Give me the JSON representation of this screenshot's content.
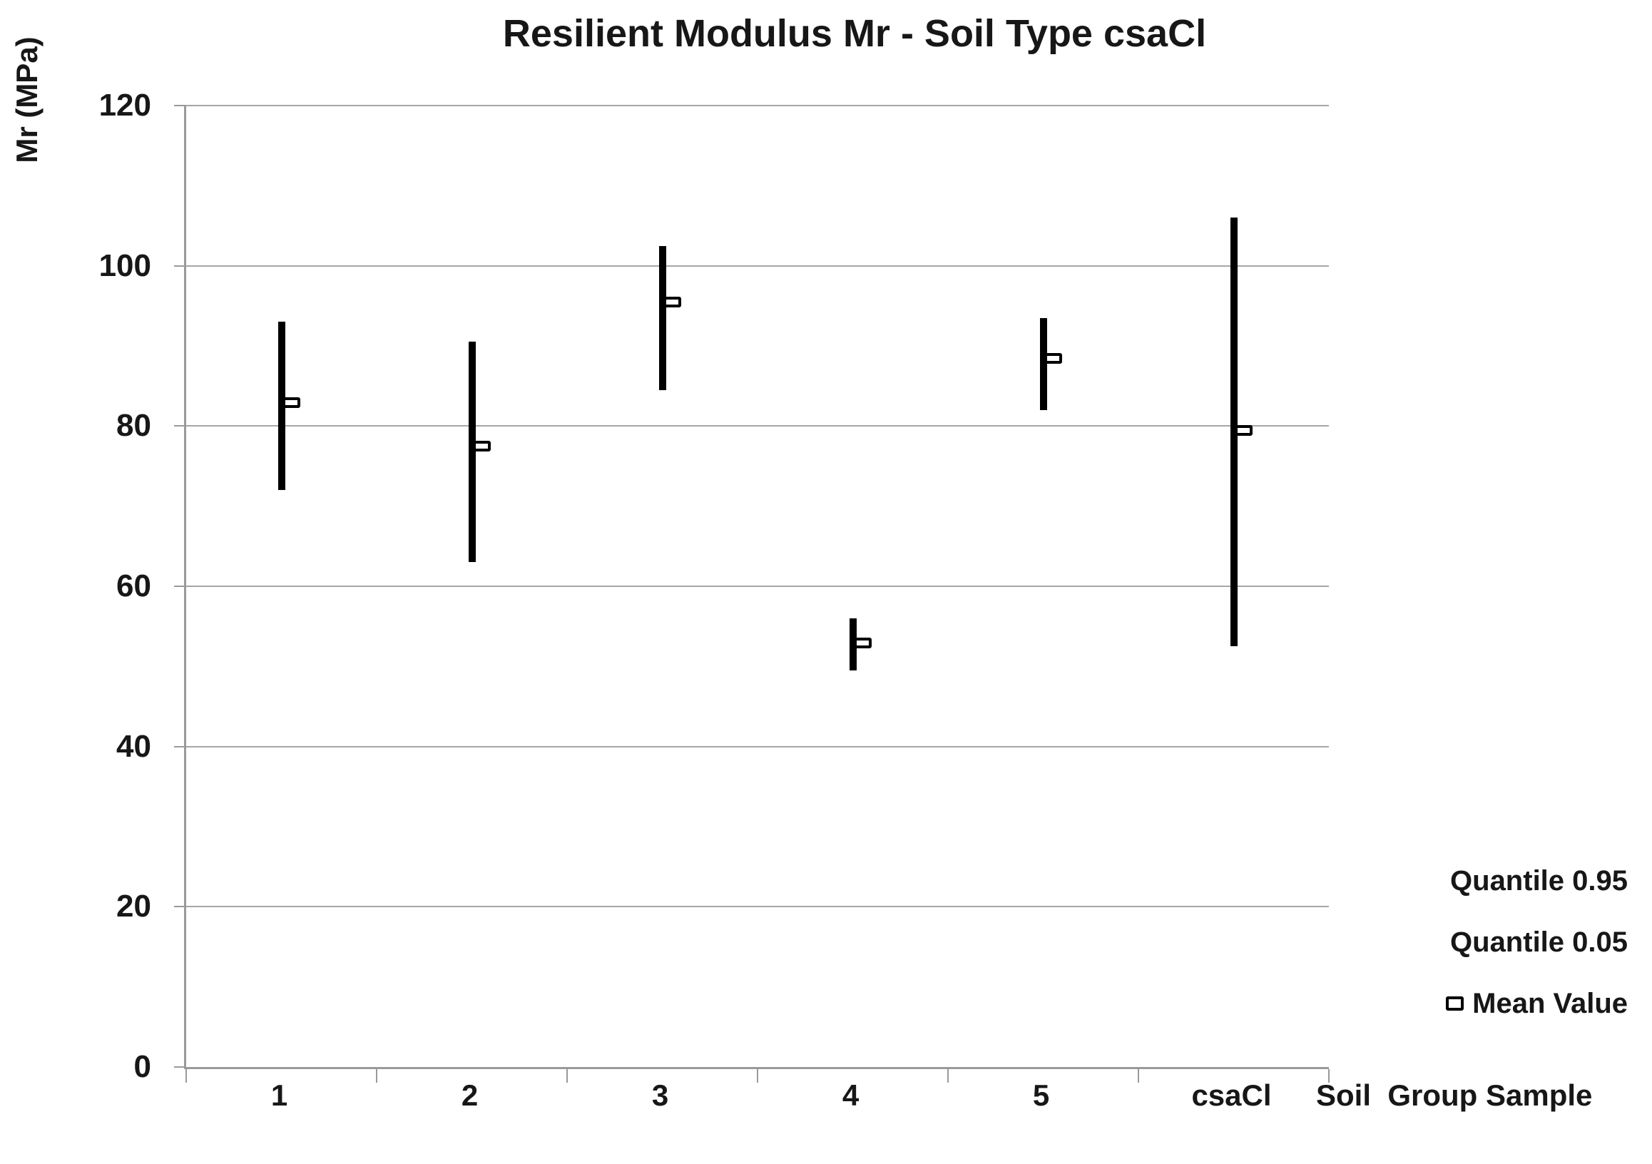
{
  "title": "Resilient Modulus Mr - Soil Type csaCl",
  "y_axis": {
    "label": "Mr (MPa)",
    "ticks": [
      120,
      100,
      80,
      60,
      40,
      20,
      0
    ]
  },
  "x_axis": {
    "title": "Soil  Group Sample",
    "categories": [
      "1",
      "2",
      "3",
      "4",
      "5",
      "csaCl"
    ]
  },
  "legend": [
    {
      "label": "Quantile 0.95",
      "marker": "none"
    },
    {
      "label": "Quantile 0.05",
      "marker": "none"
    },
    {
      "label": "Mean Value",
      "marker": "square"
    }
  ],
  "colors": {
    "bar": "#000000",
    "gridline": "#a6a6a6",
    "axis": "#9a9a9a",
    "text": "#171717",
    "background": "#ffffff"
  },
  "chart_data": {
    "type": "bar",
    "subtype": "high-low quantile range lines with mean markers",
    "categories": [
      "1",
      "2",
      "3",
      "4",
      "5",
      "csaCl"
    ],
    "series": [
      {
        "name": "Quantile 0.95",
        "values": [
          93,
          90.5,
          102.5,
          56,
          93.5,
          106
        ]
      },
      {
        "name": "Quantile 0.05",
        "values": [
          72,
          63,
          84.5,
          49.5,
          82,
          52.5
        ]
      },
      {
        "name": "Mean Value",
        "values": [
          83,
          77.5,
          95.5,
          53,
          88.5,
          79.5
        ]
      }
    ],
    "title": "Resilient Modulus Mr - Soil Type csaCl",
    "xlabel": "Soil  Group Sample",
    "ylabel": "Mr (MPa)",
    "ylim": [
      0,
      120
    ],
    "ytick_step": 20,
    "grid": true,
    "legend_position": "outside-bottom-right"
  }
}
